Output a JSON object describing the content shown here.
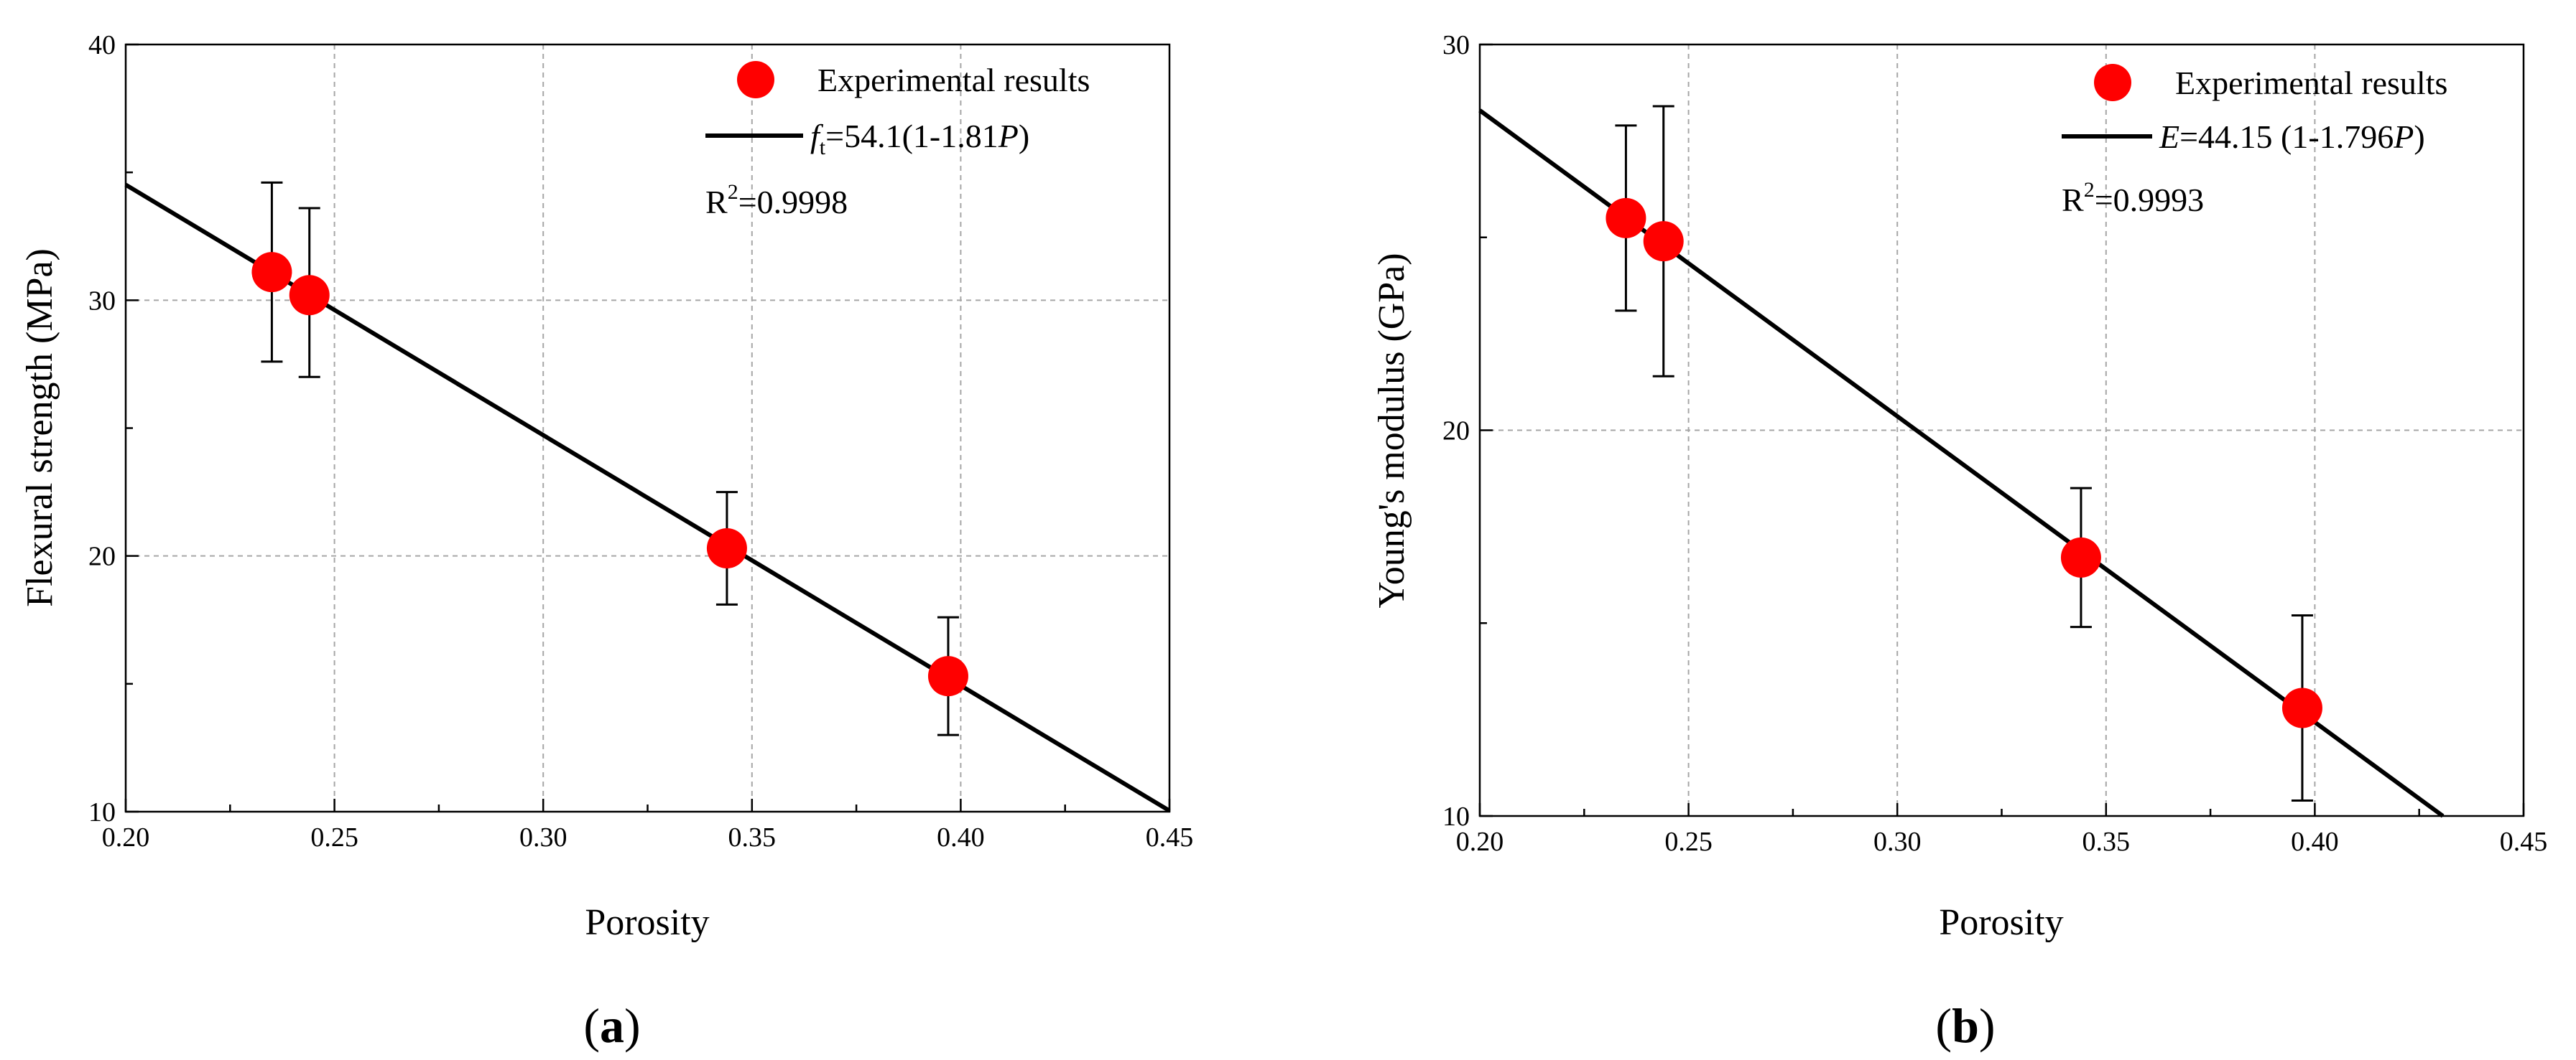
{
  "chart_data": [
    {
      "type": "scatter",
      "panel_label": "a",
      "xlabel": "Porosity",
      "ylabel": "Flexural strength (MPa)",
      "xlim": [
        0.2,
        0.45
      ],
      "ylim": [
        10,
        40
      ],
      "xticks": [
        0.2,
        0.25,
        0.3,
        0.35,
        0.4,
        0.45
      ],
      "xtick_labels": [
        "0.20",
        "0.25",
        "0.30",
        "0.35",
        "0.40",
        "0.45"
      ],
      "yticks": [
        10,
        20,
        30,
        40
      ],
      "ytick_labels": [
        "10",
        "20",
        "30",
        "40"
      ],
      "grid": true,
      "legend_position": "top-right",
      "series": [
        {
          "name": "Experimental results",
          "kind": "points",
          "color": "#ff0000",
          "x": [
            0.235,
            0.244,
            0.344,
            0.397
          ],
          "y": [
            31.1,
            30.2,
            20.3,
            15.3
          ],
          "err_low": [
            27.6,
            27.0,
            18.1,
            13.0
          ],
          "err_high": [
            34.6,
            33.6,
            22.5,
            17.6
          ]
        },
        {
          "name": "fit",
          "kind": "line",
          "color": "#000000",
          "coef_a": 54.1,
          "coef_b": 1.81
        }
      ],
      "legend_points": "Experimental results",
      "legend_fit": {
        "var": "f",
        "sub": "t",
        "eq": "=54.1(1-1.81",
        "p": "P",
        "close": ")"
      },
      "r2": {
        "base": "R",
        "exp": "2",
        "value": "=0.9998"
      }
    },
    {
      "type": "scatter",
      "panel_label": "b",
      "xlabel": "Porosity",
      "ylabel": "Young's modulus (GPa)",
      "xlim": [
        0.2,
        0.45
      ],
      "ylim": [
        10,
        30
      ],
      "xticks": [
        0.2,
        0.25,
        0.3,
        0.35,
        0.4,
        0.45
      ],
      "xtick_labels": [
        "0.20",
        "0.25",
        "0.30",
        "0.35",
        "0.40",
        "0.45"
      ],
      "yticks": [
        10,
        20,
        30
      ],
      "ytick_labels": [
        "10",
        "20",
        "30"
      ],
      "grid": true,
      "legend_position": "top-right",
      "series": [
        {
          "name": "Experimental results",
          "kind": "points",
          "color": "#ff0000",
          "x": [
            0.235,
            0.244,
            0.344,
            0.397
          ],
          "y": [
            25.5,
            24.9,
            16.7,
            12.8
          ],
          "err_low": [
            23.1,
            21.4,
            14.9,
            10.4
          ],
          "err_high": [
            27.9,
            28.4,
            18.5,
            15.2
          ]
        },
        {
          "name": "fit",
          "kind": "line",
          "color": "#000000",
          "coef_a": 44.15,
          "coef_b": 1.796
        }
      ],
      "legend_points": "Experimental results",
      "legend_fit": {
        "var": "E",
        "sub": "",
        "eq": "=44.15 (1-1.796",
        "p": "P",
        "close": ")"
      },
      "r2": {
        "base": "R",
        "exp": "2",
        "value": "=0.9993"
      }
    }
  ]
}
